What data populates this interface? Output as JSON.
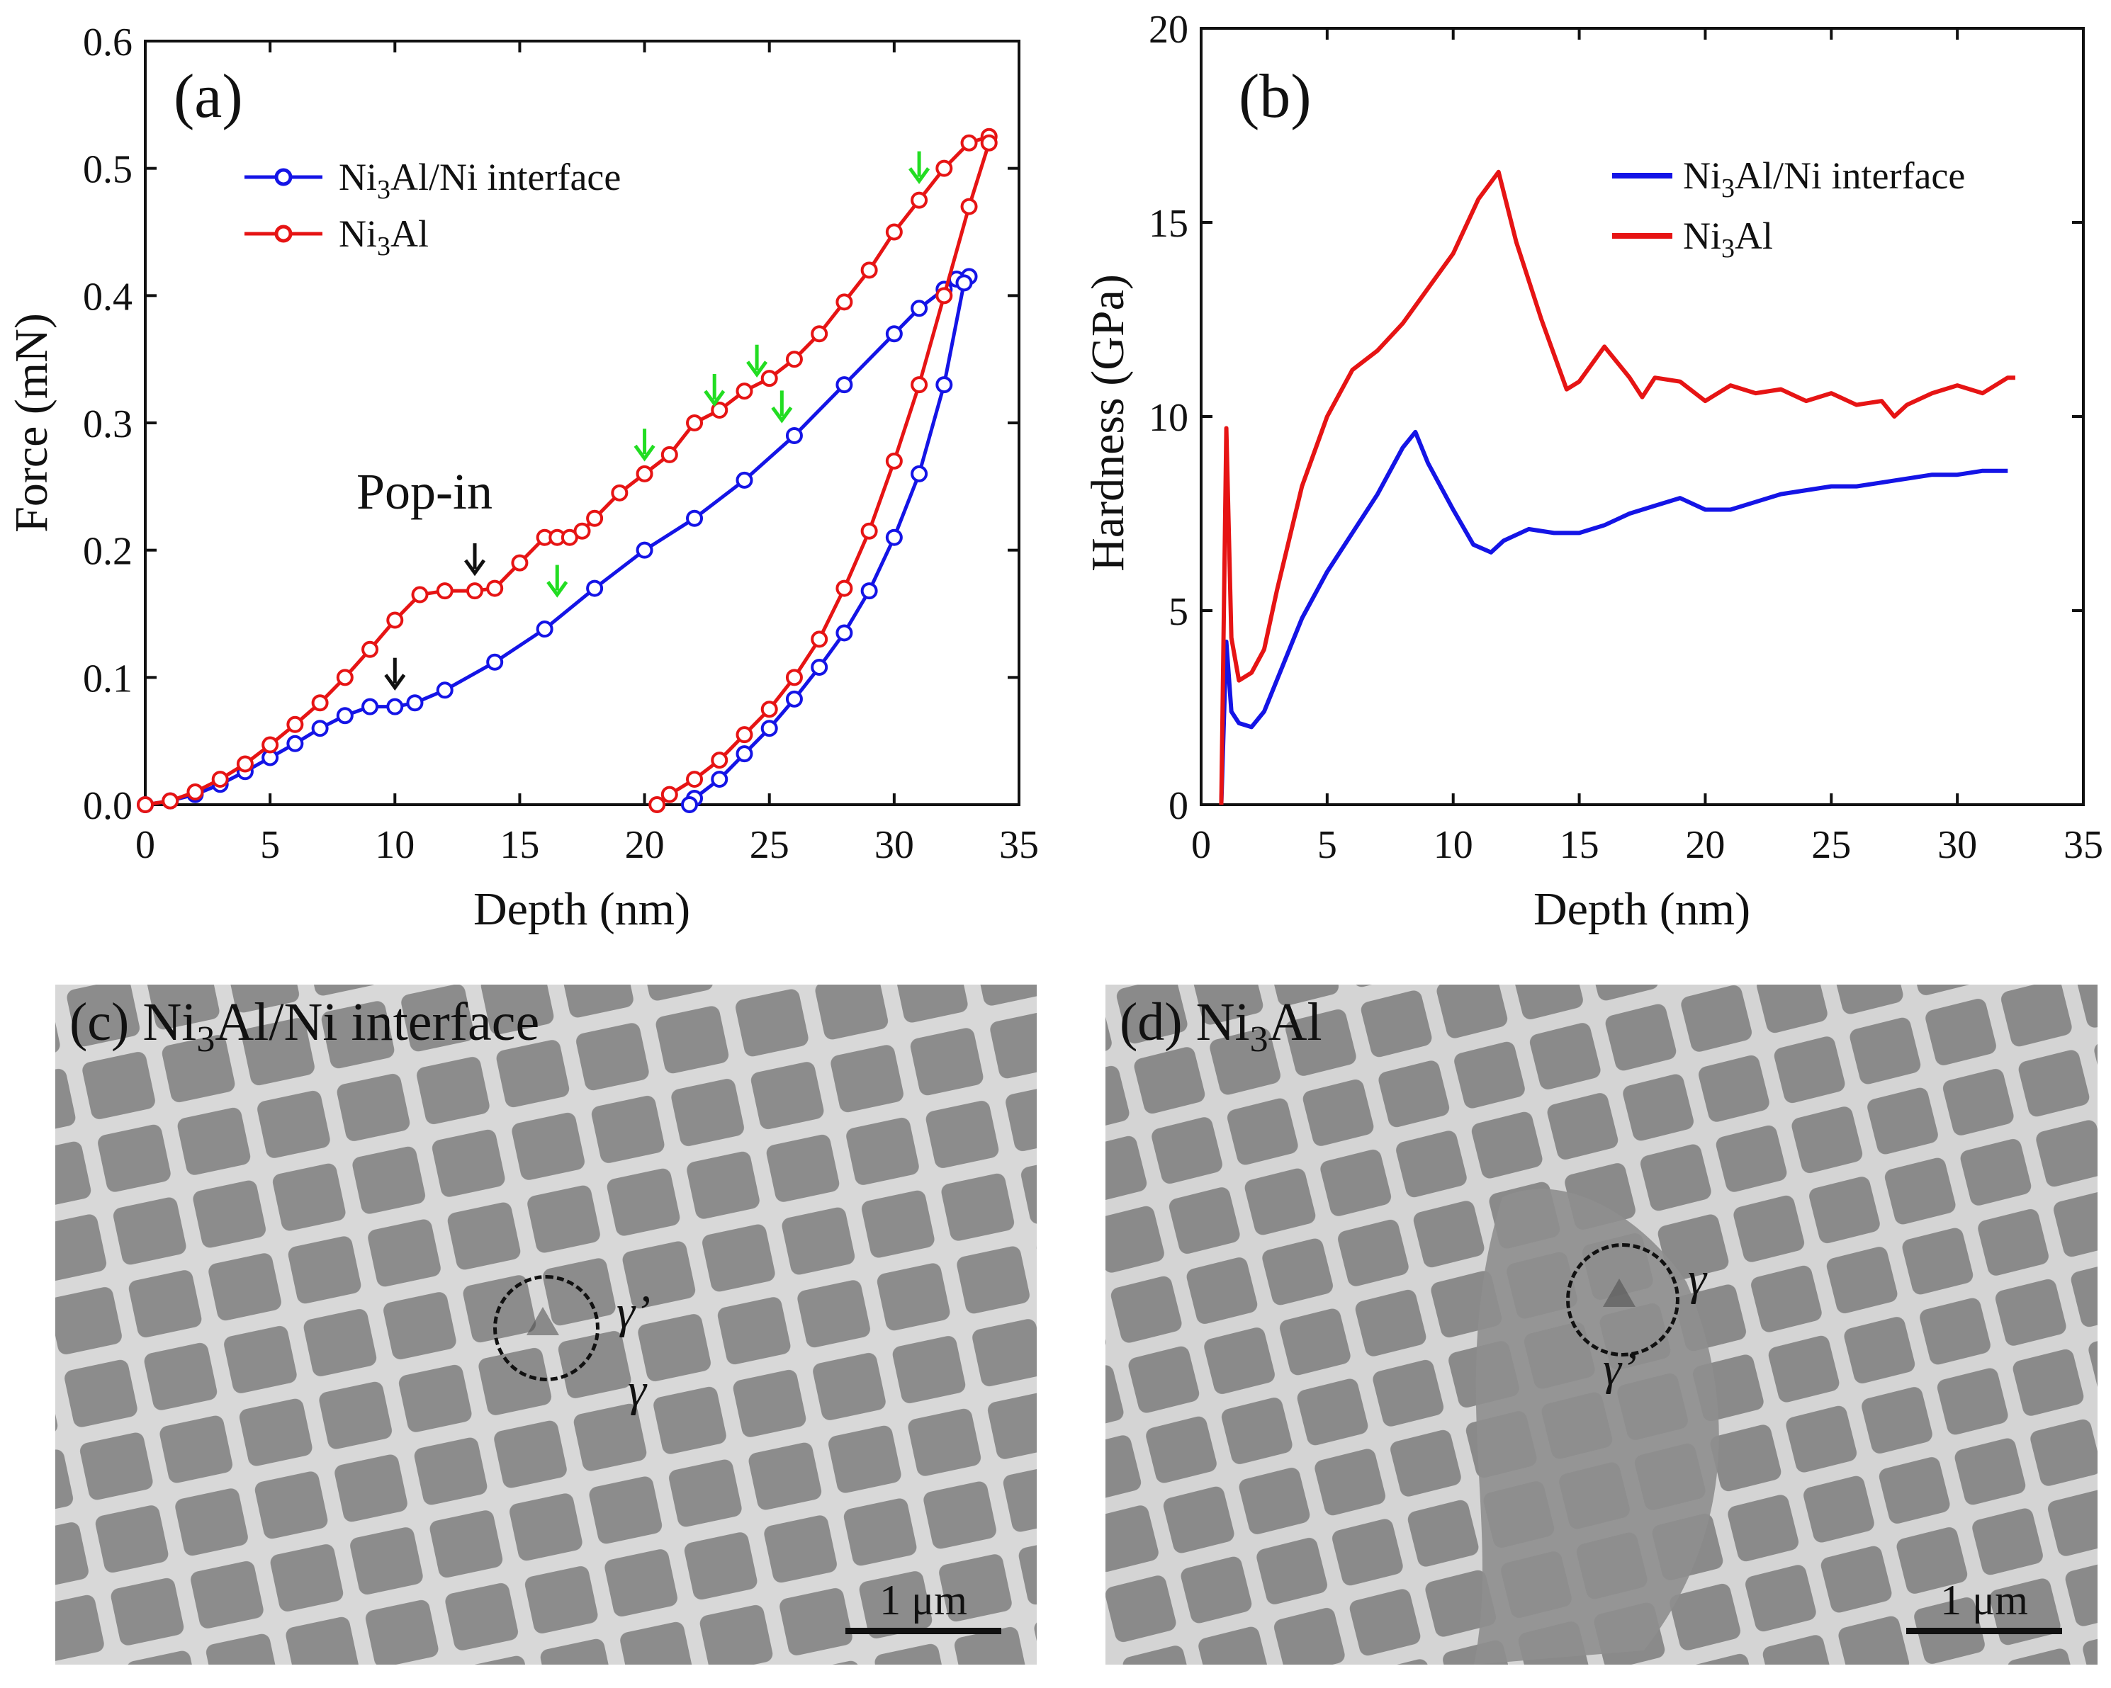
{
  "chart_data": [
    {
      "panel": "(a)",
      "type": "line",
      "title": "(a)",
      "xlabel": "Depth (nm)",
      "ylabel": "Force (mN)",
      "xlim": [
        0,
        35
      ],
      "ylim": [
        0,
        0.6
      ],
      "xticks": [
        0,
        5,
        10,
        15,
        20,
        25,
        30,
        35
      ],
      "yticks": [
        0.0,
        0.1,
        0.2,
        0.3,
        0.4,
        0.5,
        0.6
      ],
      "xtick_labels": [
        "0",
        "5",
        "10",
        "15",
        "20",
        "25",
        "30",
        "35"
      ],
      "ytick_labels": [
        "0.0",
        "0.1",
        "0.2",
        "0.3",
        "0.4",
        "0.5",
        "0.6"
      ],
      "legend": [
        "Ni3Al/Ni interface",
        "Ni3Al"
      ],
      "legend_position": "top-left",
      "annotation": "Pop-in",
      "series": [
        {
          "name": "Ni3Al/Ni interface",
          "color": "#1414e6",
          "marker": "circle",
          "x": [
            0,
            1,
            2,
            3,
            4,
            5,
            6,
            7,
            8,
            9,
            10,
            10.8,
            12,
            14,
            16,
            18,
            20,
            22,
            24,
            26,
            28,
            30,
            31,
            32,
            32.5,
            33,
            32.8,
            32,
            31,
            30,
            29,
            28,
            27,
            26,
            25,
            24,
            23,
            22,
            21.8
          ],
          "y": [
            0,
            0.003,
            0.008,
            0.016,
            0.026,
            0.037,
            0.048,
            0.06,
            0.07,
            0.077,
            0.077,
            0.08,
            0.09,
            0.112,
            0.138,
            0.17,
            0.2,
            0.225,
            0.255,
            0.29,
            0.33,
            0.37,
            0.39,
            0.405,
            0.413,
            0.415,
            0.41,
            0.33,
            0.26,
            0.21,
            0.168,
            0.135,
            0.108,
            0.083,
            0.06,
            0.04,
            0.02,
            0.005,
            0
          ]
        },
        {
          "name": "Ni3Al",
          "color": "#e61414",
          "marker": "circle",
          "x": [
            0,
            1,
            2,
            3,
            4,
            5,
            6,
            7,
            8,
            9,
            10,
            11,
            12,
            13.2,
            14,
            15,
            16,
            16.5,
            17,
            17.5,
            18,
            19,
            20,
            21,
            22,
            23,
            24,
            25,
            26,
            27,
            28,
            29,
            30,
            31,
            32,
            33,
            33.8,
            33.8,
            33,
            32,
            31,
            30,
            29,
            28,
            27,
            26,
            25,
            24,
            23,
            22,
            21,
            20.5
          ],
          "y": [
            0,
            0.003,
            0.01,
            0.02,
            0.032,
            0.047,
            0.063,
            0.08,
            0.1,
            0.122,
            0.145,
            0.165,
            0.168,
            0.168,
            0.17,
            0.19,
            0.21,
            0.21,
            0.21,
            0.215,
            0.225,
            0.245,
            0.26,
            0.275,
            0.3,
            0.31,
            0.325,
            0.335,
            0.35,
            0.37,
            0.395,
            0.42,
            0.45,
            0.475,
            0.5,
            0.52,
            0.525,
            0.52,
            0.47,
            0.4,
            0.33,
            0.27,
            0.215,
            0.17,
            0.13,
            0.1,
            0.075,
            0.055,
            0.035,
            0.02,
            0.008,
            0
          ]
        }
      ]
    },
    {
      "panel": "(b)",
      "type": "line",
      "title": "(b)",
      "xlabel": "Depth (nm)",
      "ylabel": "Hardness (GPa)",
      "xlim": [
        0,
        35
      ],
      "ylim": [
        0,
        20
      ],
      "xticks": [
        0,
        5,
        10,
        15,
        20,
        25,
        30,
        35
      ],
      "yticks": [
        0,
        5,
        10,
        15,
        20
      ],
      "xtick_labels": [
        "0",
        "5",
        "10",
        "15",
        "20",
        "25",
        "30",
        "35"
      ],
      "ytick_labels": [
        "0",
        "5",
        "10",
        "15",
        "20"
      ],
      "legend": [
        "Ni3Al/Ni interface",
        "Ni3Al"
      ],
      "legend_position": "top-right",
      "series": [
        {
          "name": "Ni3Al/Ni interface",
          "color": "#1414e6",
          "x": [
            0.8,
            1.0,
            1.2,
            1.5,
            2,
            2.5,
            3,
            4,
            5,
            6,
            7,
            8,
            8.5,
            9,
            10,
            10.8,
            11.5,
            12,
            13,
            14,
            15,
            16,
            17,
            18,
            19,
            20,
            21,
            22,
            23,
            24,
            25,
            26,
            27,
            28,
            29,
            30,
            31,
            32
          ],
          "y": [
            0,
            4.2,
            2.4,
            2.1,
            2.0,
            2.4,
            3.2,
            4.8,
            6.0,
            7.0,
            8.0,
            9.2,
            9.6,
            8.8,
            7.6,
            6.7,
            6.5,
            6.8,
            7.1,
            7.0,
            7.0,
            7.2,
            7.5,
            7.7,
            7.9,
            7.6,
            7.6,
            7.8,
            8.0,
            8.1,
            8.2,
            8.2,
            8.3,
            8.4,
            8.5,
            8.5,
            8.6,
            8.6
          ]
        },
        {
          "name": "Ni3Al",
          "color": "#e61414",
          "x": [
            0.8,
            1.0,
            1.2,
            1.5,
            2,
            2.5,
            3,
            4,
            5,
            6,
            7,
            8,
            9,
            10,
            11,
            11.8,
            12.5,
            13.5,
            14.5,
            15,
            16,
            17,
            17.5,
            18,
            19,
            20,
            21,
            22,
            23,
            24,
            25,
            26,
            27,
            27.5,
            28,
            29,
            30,
            31,
            32,
            32.3
          ],
          "y": [
            0,
            9.7,
            4.3,
            3.2,
            3.4,
            4.0,
            5.5,
            8.2,
            10.0,
            11.2,
            11.7,
            12.4,
            13.3,
            14.2,
            15.6,
            16.3,
            14.5,
            12.5,
            10.7,
            10.9,
            11.8,
            11.0,
            10.5,
            11.0,
            10.9,
            10.4,
            10.8,
            10.6,
            10.7,
            10.4,
            10.6,
            10.3,
            10.4,
            10.0,
            10.3,
            10.6,
            10.8,
            10.6,
            11.0,
            11.0
          ]
        }
      ]
    }
  ],
  "sem": {
    "c": {
      "title_pre": "(c) Ni",
      "title_sub": "3",
      "title_post": "Al/Ni interface",
      "phase1": "γ’",
      "phase2": "γ",
      "scale_label": "1 μm"
    },
    "d": {
      "title_pre": "(d) Ni",
      "title_sub": "3",
      "title_post": "Al",
      "phase1": "γ",
      "phase2": "γ’",
      "scale_label": "1 μm"
    }
  },
  "colors": {
    "blue": "#1414e6",
    "red": "#e61414",
    "green_arrow": "#22dd22",
    "black": "#111111"
  }
}
